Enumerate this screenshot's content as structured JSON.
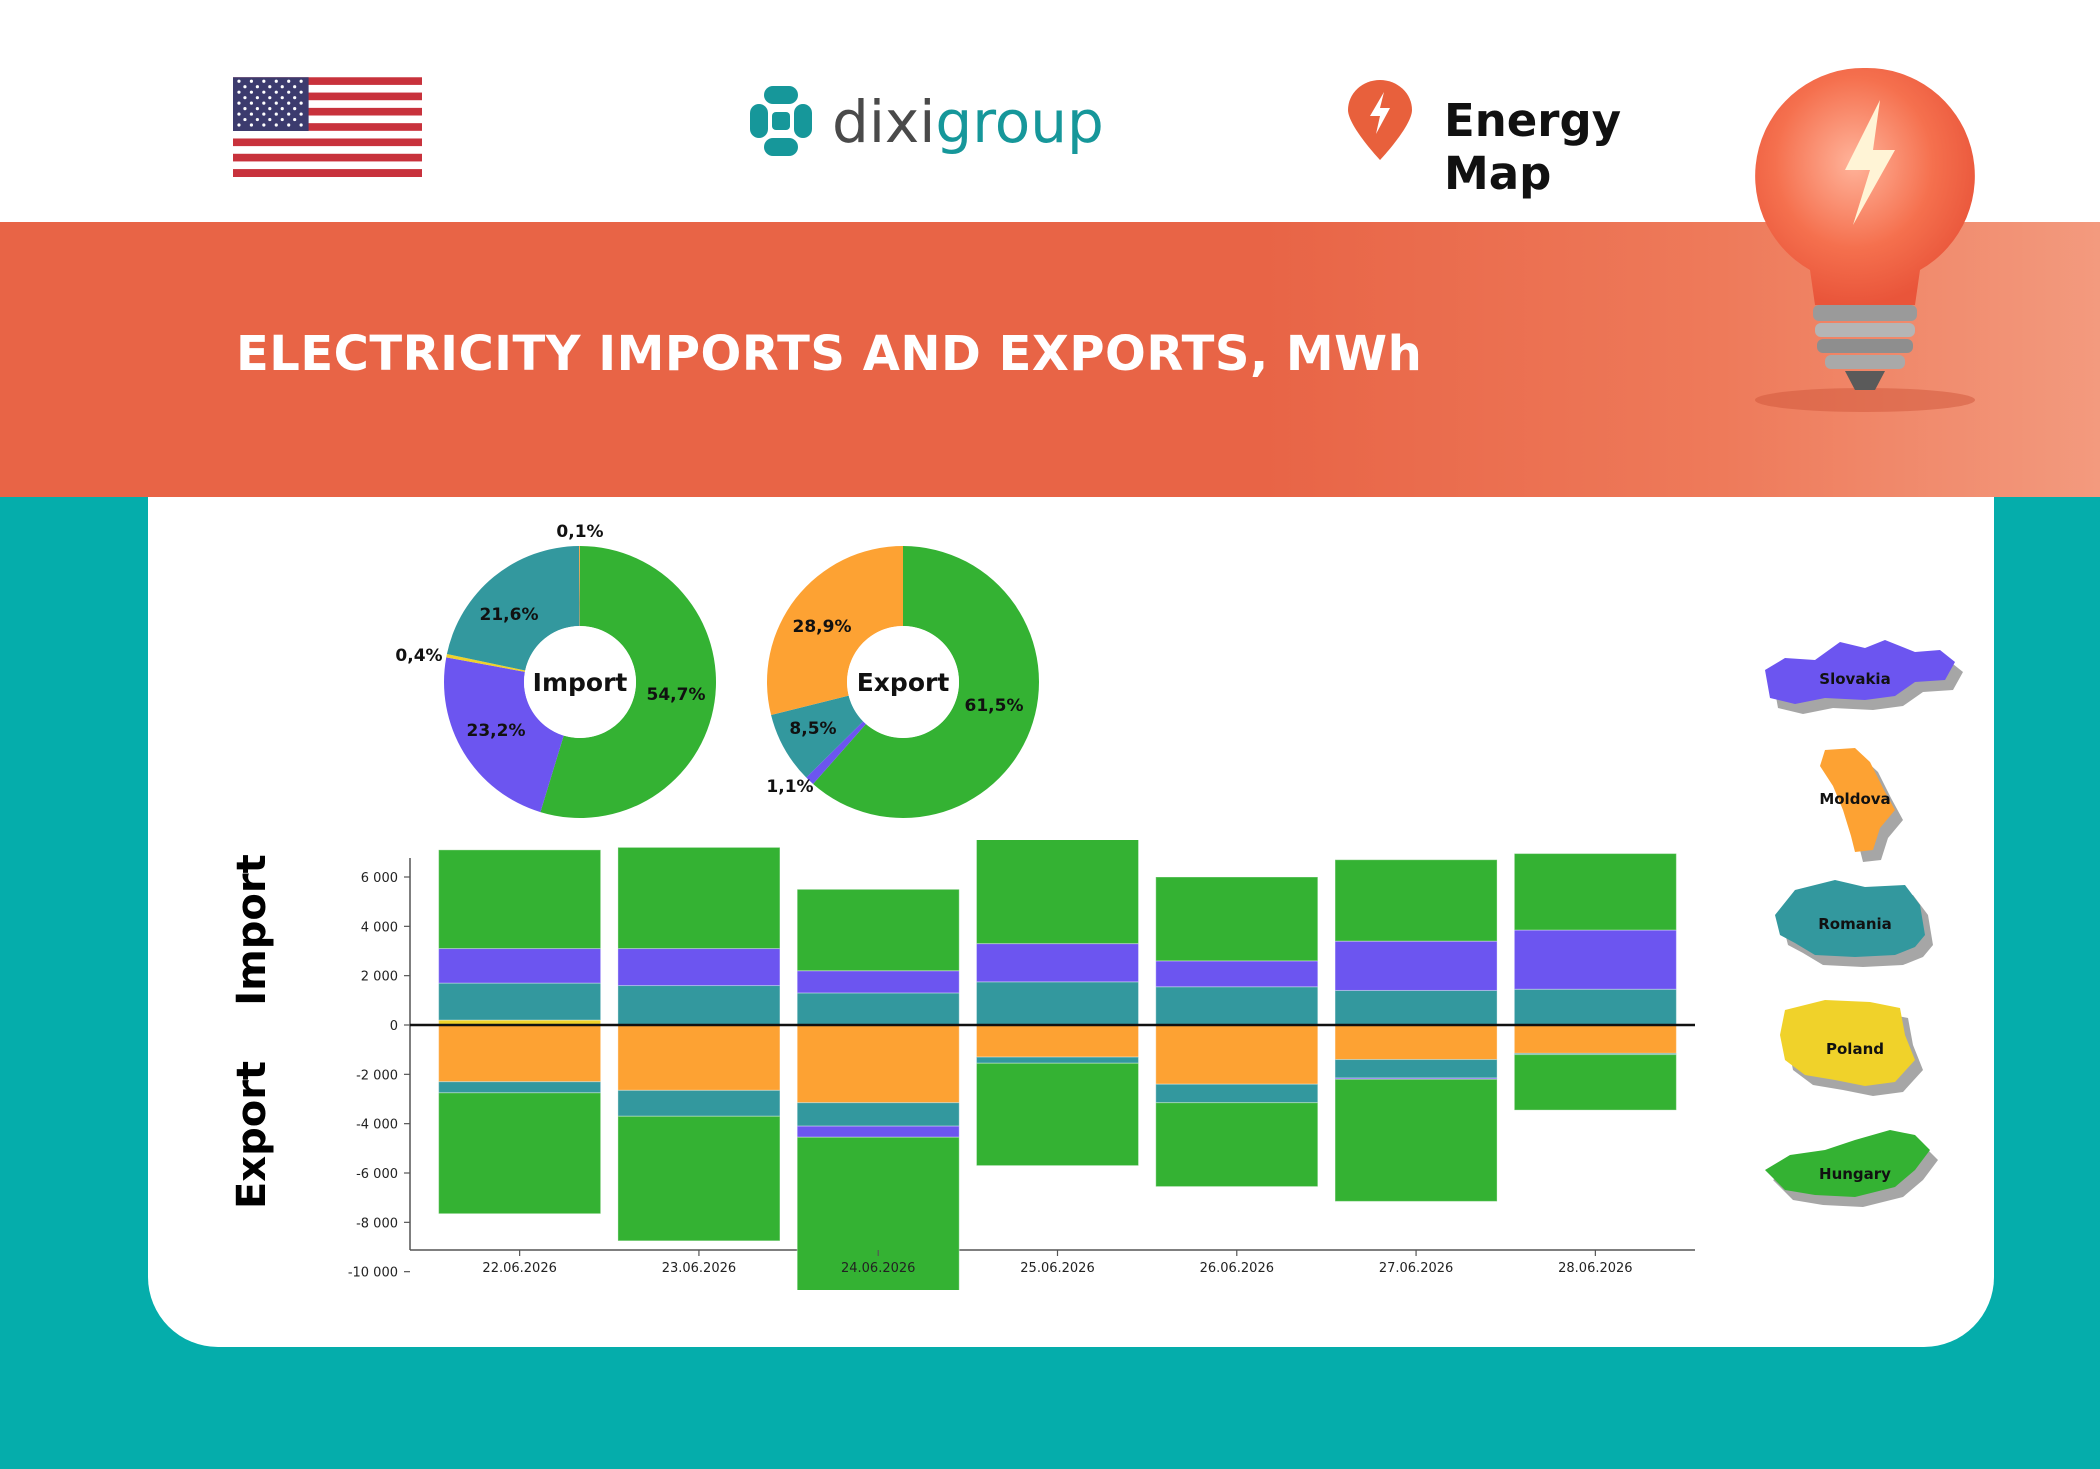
{
  "header": {
    "logo_text_dark": "dixi",
    "logo_text_teal": "group",
    "energy_map_label": "Energy Map"
  },
  "banner": {
    "title": "ELECTRICITY IMPORTS AND EXPORTS, MWh"
  },
  "colors": {
    "hungary": "#34b233",
    "slovakia": "#6c55f0",
    "romania": "#33989e",
    "moldova": "#fda233",
    "poland": "#f0d22a",
    "banner": "#e86446",
    "teal_bg": "#05adab"
  },
  "legend": {
    "countries": [
      "Slovakia",
      "Moldova",
      "Romania",
      "Poland",
      "Hungary"
    ]
  },
  "chart_data": [
    {
      "type": "pie",
      "center_label": "Import",
      "slices": [
        {
          "country": "Hungary",
          "value": 54.7,
          "label": "54,7%"
        },
        {
          "country": "Slovakia",
          "value": 23.2,
          "label": "23,2%"
        },
        {
          "country": "Poland",
          "value": 0.4,
          "label": "0,4%"
        },
        {
          "country": "Romania",
          "value": 21.6,
          "label": "21,6%"
        },
        {
          "country": "Moldova",
          "value": 0.1,
          "label": "0,1%"
        }
      ]
    },
    {
      "type": "pie",
      "center_label": "Export",
      "slices": [
        {
          "country": "Hungary",
          "value": 61.5,
          "label": "61,5%"
        },
        {
          "country": "Slovakia",
          "value": 1.1,
          "label": "1,1%"
        },
        {
          "country": "Romania",
          "value": 8.5,
          "label": "8,5%"
        },
        {
          "country": "Moldova",
          "value": 28.9,
          "label": "28,9%"
        }
      ]
    },
    {
      "type": "bar",
      "stacked": true,
      "ylabel_top": "Import",
      "ylabel_bottom": "Export",
      "ylim": [
        -11000,
        8000
      ],
      "yticks": [
        6000,
        4000,
        2000,
        0,
        -2000,
        -4000,
        -6000,
        -8000,
        -10000
      ],
      "ytick_labels": [
        "6 000",
        "4 000",
        "2 000",
        "0",
        "-2 000",
        "-4 000",
        "-6 000",
        "-8 000",
        "-10 000"
      ],
      "categories": [
        "22.06.2026",
        "23.06.2026",
        "24.06.2026",
        "25.06.2026",
        "26.06.2026",
        "27.06.2026",
        "28.06.2026"
      ],
      "import_series": [
        {
          "country": "Poland",
          "values": [
            200,
            0,
            0,
            0,
            0,
            0,
            0
          ]
        },
        {
          "country": "Romania",
          "values": [
            1500,
            1600,
            1300,
            1750,
            1550,
            1400,
            1450
          ]
        },
        {
          "country": "Slovakia",
          "values": [
            1400,
            1500,
            900,
            1550,
            1050,
            2000,
            2400
          ]
        },
        {
          "country": "Hungary",
          "values": [
            4000,
            4100,
            3300,
            4600,
            3400,
            3300,
            3100
          ]
        }
      ],
      "export_series": [
        {
          "country": "Moldova",
          "values": [
            -2300,
            -2650,
            -3150,
            -1300,
            -2400,
            -1400,
            -1150
          ]
        },
        {
          "country": "Romania",
          "values": [
            -450,
            -1050,
            -950,
            -250,
            -750,
            -750,
            -50
          ]
        },
        {
          "country": "Slovakia",
          "values": [
            0,
            0,
            -450,
            0,
            0,
            -50,
            0
          ]
        },
        {
          "country": "Hungary",
          "values": [
            -4900,
            -5050,
            -6500,
            -4150,
            -3400,
            -4950,
            -2250
          ]
        }
      ]
    }
  ]
}
